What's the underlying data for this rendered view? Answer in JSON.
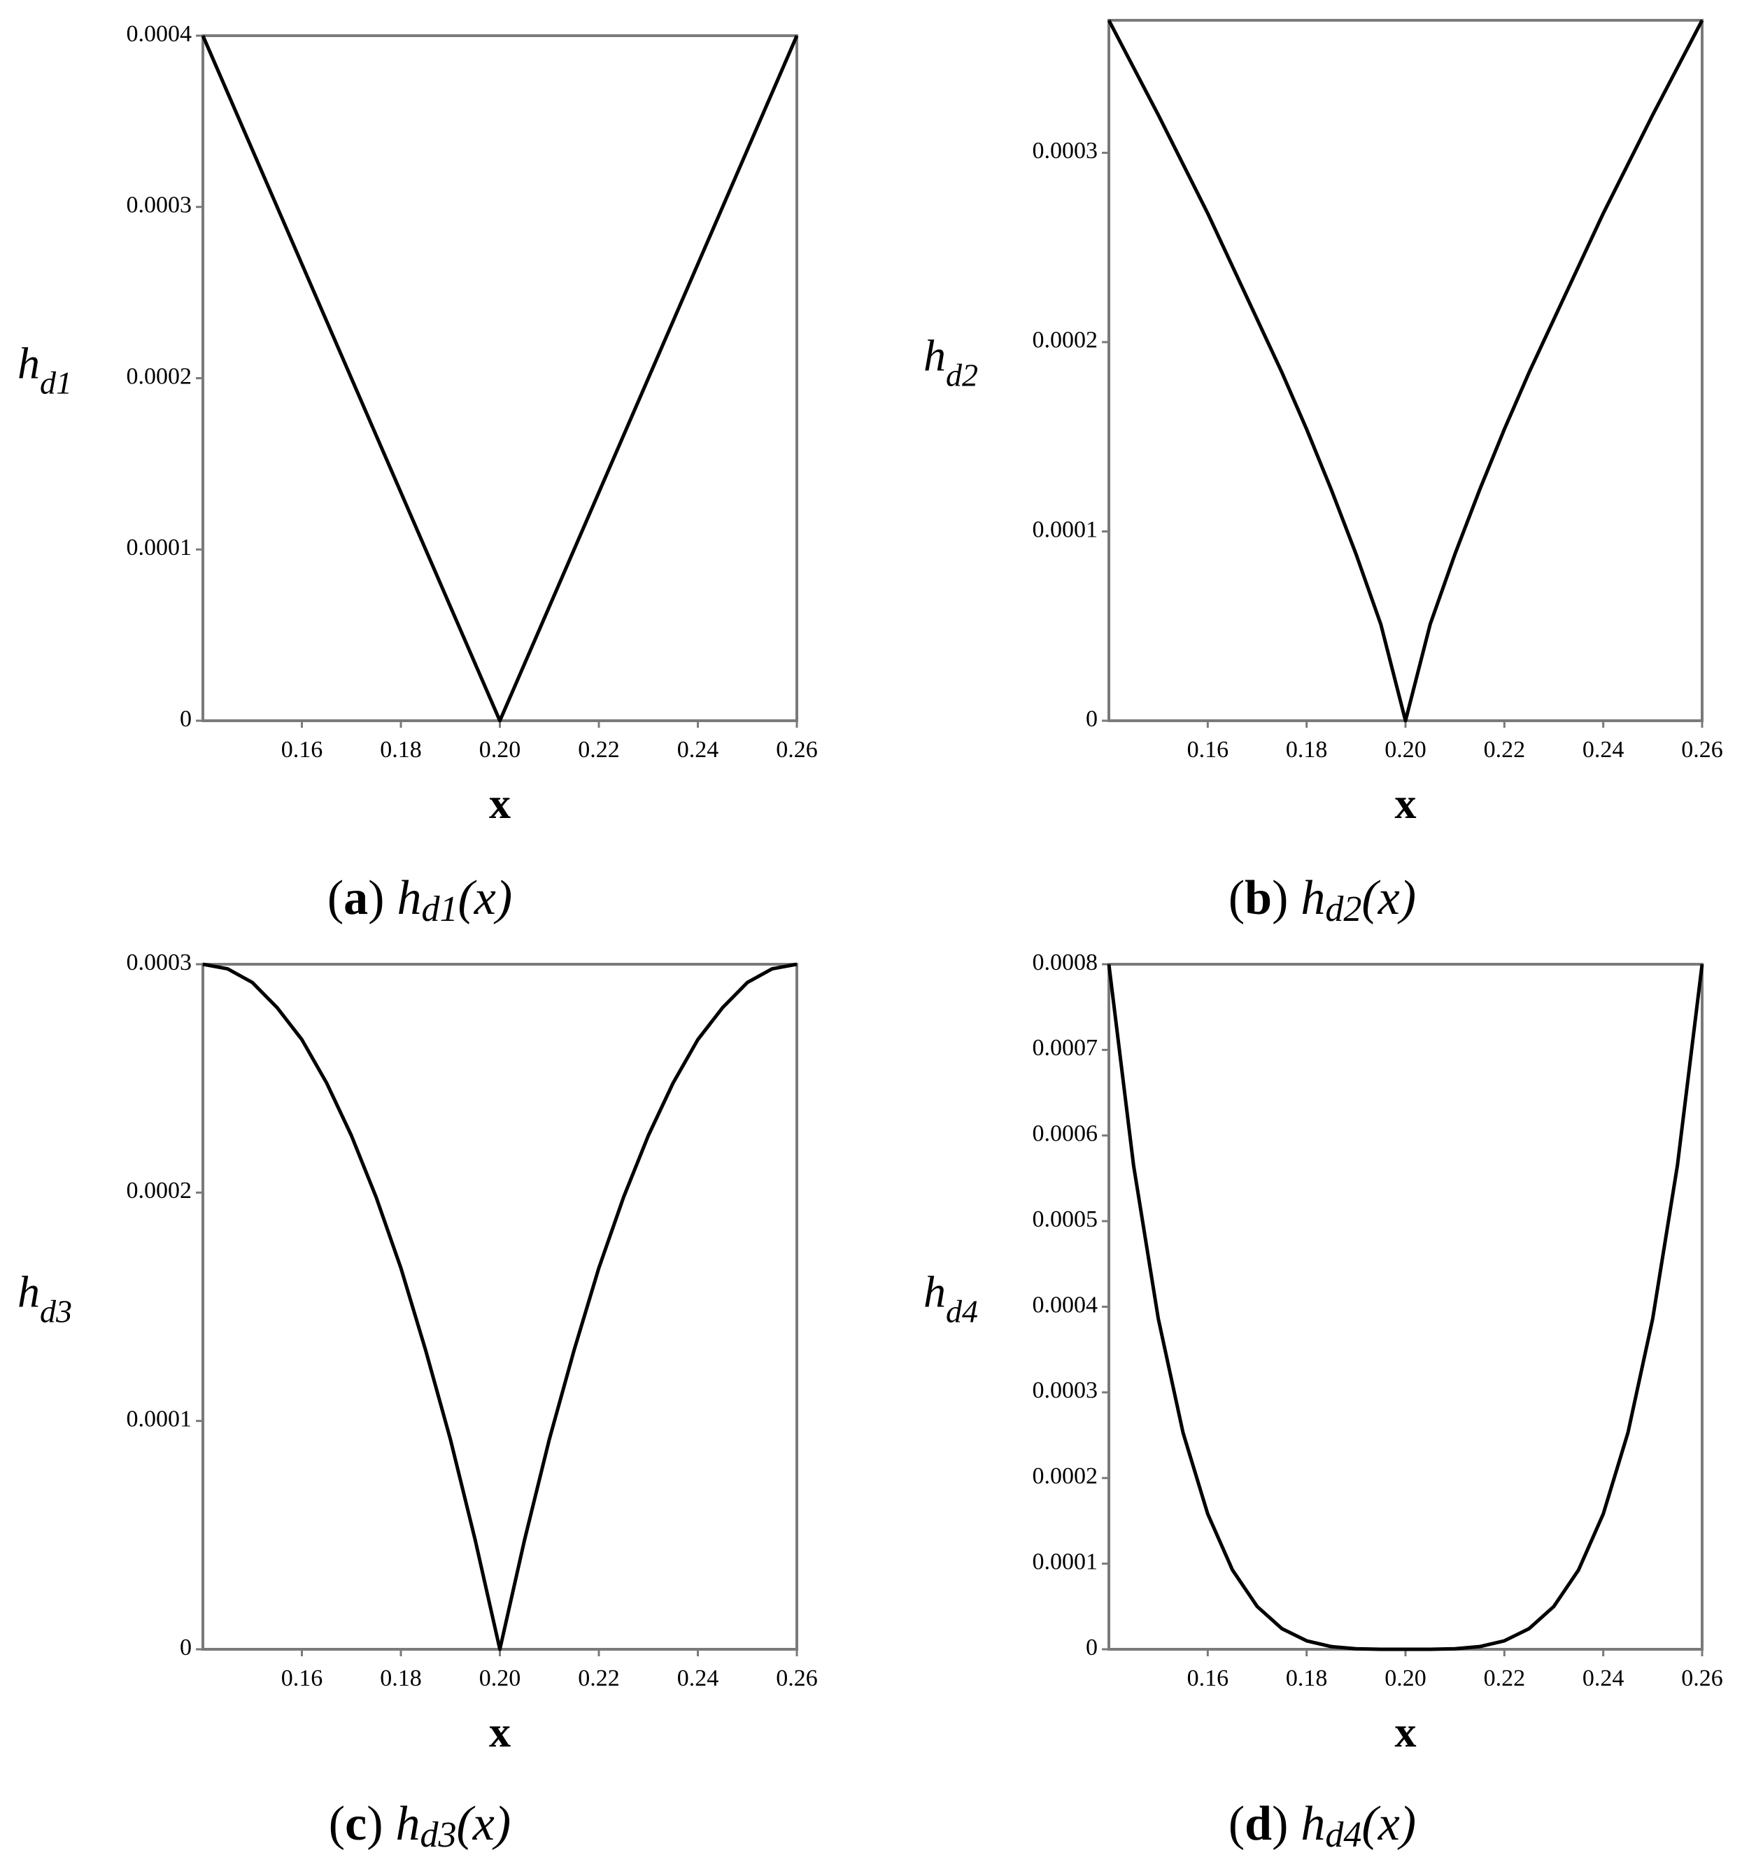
{
  "chart_data": [
    {
      "type": "line",
      "ylabel": "h",
      "ylabel_sub": "d1",
      "xlabel": "x",
      "caption": {
        "open": "(",
        "tag": "a",
        "close": ")",
        "func": "h",
        "sub": "d1",
        "arg": "(x)"
      },
      "x": [
        0.14,
        0.2,
        0.26
      ],
      "values": [
        0.0004,
        0,
        0.0004
      ],
      "color": "#000000",
      "xlim": [
        0.14,
        0.26
      ],
      "xticks": [
        0.16,
        0.18,
        {
          "value": 0.2,
          "label": "0.20"
        },
        0.22,
        0.24,
        0.26
      ],
      "ylim": [
        0,
        0.0004
      ],
      "yticks": [
        0,
        0.0001,
        0.0002,
        0.0003,
        0.0004
      ]
    },
    {
      "type": "line",
      "ylabel": "h",
      "ylabel_sub": "d2",
      "xlabel": "x",
      "caption": {
        "open": "(",
        "tag": "b",
        "close": ")",
        "func": "h",
        "sub": "d2",
        "arg": "(x)"
      },
      "x": [
        0.14,
        0.145,
        0.15,
        0.155,
        0.16,
        0.165,
        0.17,
        0.175,
        0.18,
        0.185,
        0.19,
        0.195,
        0.2,
        0.205,
        0.21,
        0.215,
        0.22,
        0.225,
        0.23,
        0.235,
        0.24,
        0.245,
        0.25,
        0.255,
        0.26
      ],
      "values": [
        0.00037,
        0.000345,
        0.00032,
        0.000294,
        0.000268,
        0.00024,
        0.000212,
        0.000184,
        0.000154,
        0.000122,
        8.8e-05,
        5.1e-05,
        0,
        5.1e-05,
        8.8e-05,
        0.000122,
        0.000154,
        0.000184,
        0.000212,
        0.00024,
        0.000268,
        0.000294,
        0.00032,
        0.000345,
        0.00037
      ],
      "color": "#000000",
      "xlim": [
        0.14,
        0.26
      ],
      "xticks": [
        0.16,
        0.18,
        {
          "value": 0.2,
          "label": "0.20"
        },
        0.22,
        0.24,
        0.26
      ],
      "ylim": [
        0,
        0.00037
      ],
      "yticks": [
        0,
        0.0001,
        0.0002,
        0.0003
      ]
    },
    {
      "type": "line",
      "ylabel": "h",
      "ylabel_sub": "d3",
      "xlabel": "x",
      "caption": {
        "open": "(",
        "tag": "c",
        "close": ")",
        "func": "h",
        "sub": "d3",
        "arg": "(x)"
      },
      "x": [
        0.14,
        0.145,
        0.15,
        0.155,
        0.16,
        0.165,
        0.17,
        0.175,
        0.18,
        0.185,
        0.19,
        0.195,
        0.2,
        0.205,
        0.21,
        0.215,
        0.22,
        0.225,
        0.23,
        0.235,
        0.24,
        0.245,
        0.25,
        0.255,
        0.26
      ],
      "values": [
        0.0003,
        0.000298,
        0.000292,
        0.000281,
        0.000267,
        0.000248,
        0.000225,
        0.000198,
        0.000167,
        0.000131,
        9.2e-05,
        4.8e-05,
        0,
        4.8e-05,
        9.2e-05,
        0.000131,
        0.000167,
        0.000198,
        0.000225,
        0.000248,
        0.000267,
        0.000281,
        0.000292,
        0.000298,
        0.0003
      ],
      "color": "#000000",
      "xlim": [
        0.14,
        0.26
      ],
      "xticks": [
        0.16,
        0.18,
        {
          "value": 0.2,
          "label": "0.20"
        },
        0.22,
        0.24,
        0.26
      ],
      "ylim": [
        0,
        0.0003
      ],
      "yticks": [
        0,
        0.0001,
        0.0002,
        0.0003
      ]
    },
    {
      "type": "line",
      "ylabel": "h",
      "ylabel_sub": "d4",
      "xlabel": "x",
      "caption": {
        "open": "(",
        "tag": "d",
        "close": ")",
        "func": "h",
        "sub": "d4",
        "arg": "(x)"
      },
      "x": [
        0.14,
        0.145,
        0.15,
        0.155,
        0.16,
        0.165,
        0.17,
        0.175,
        0.18,
        0.185,
        0.19,
        0.195,
        0.2,
        0.205,
        0.21,
        0.215,
        0.22,
        0.225,
        0.23,
        0.235,
        0.24,
        0.245,
        0.25,
        0.255,
        0.26
      ],
      "values": [
        0.0008,
        0.000565,
        0.000386,
        0.000253,
        0.000158,
        9.26e-05,
        5e-05,
        2.41e-05,
        9.88e-06,
        3.13e-06,
        6.17e-07,
        3.86e-08,
        0,
        3.86e-08,
        6.17e-07,
        3.13e-06,
        9.88e-06,
        2.41e-05,
        5e-05,
        9.26e-05,
        0.000158,
        0.000253,
        0.000386,
        0.000565,
        0.0008
      ],
      "color": "#000000",
      "xlim": [
        0.14,
        0.26
      ],
      "xticks": [
        0.16,
        0.18,
        {
          "value": 0.2,
          "label": "0.20"
        },
        0.22,
        0.24,
        0.26
      ],
      "ylim": [
        0,
        0.0008
      ],
      "yticks": [
        0,
        0.0001,
        0.0002,
        0.0003,
        0.0004,
        0.0005,
        0.0006,
        0.0007,
        0.0008
      ]
    }
  ]
}
